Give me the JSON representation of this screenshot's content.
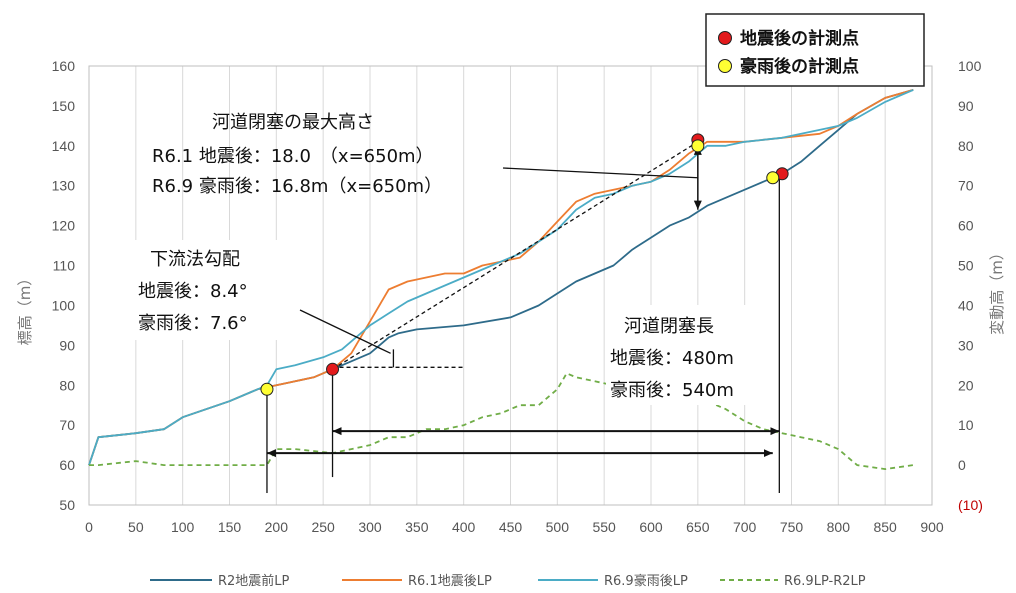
{
  "chart_data": {
    "type": "line",
    "xlim": [
      0,
      900
    ],
    "x_ticks": [
      "0",
      "50",
      "100",
      "150",
      "200",
      "250",
      "300",
      "350",
      "400",
      "450",
      "500",
      "550",
      "600",
      "650",
      "700",
      "750",
      "800",
      "850",
      "900"
    ],
    "ylim_left": [
      50,
      160
    ],
    "y_left_ticks": [
      "50",
      "60",
      "70",
      "80",
      "90",
      "100",
      "110",
      "120",
      "130",
      "140",
      "150",
      "160"
    ],
    "ylim_right": [
      -10,
      100
    ],
    "y_right_ticks": [
      "(10)",
      "0",
      "10",
      "20",
      "30",
      "40",
      "50",
      "60",
      "70",
      "80",
      "90",
      "100"
    ],
    "ylabel_left": "標高（m）",
    "ylabel_right": "変動高（m）",
    "grid": "vertical",
    "legend_position": "bottom",
    "colors": {
      "r2": "#2e6b8a",
      "r61": "#ed7d31",
      "r69": "#4bacc6",
      "diff": "#70ad47",
      "red_marker": "#e31a1c",
      "yellow_marker": "#ffff33"
    },
    "series": [
      {
        "name": "R2地震前LP",
        "axis": "left",
        "x": [
          0,
          10,
          50,
          80,
          100,
          150,
          180,
          200,
          220,
          240,
          260,
          280,
          300,
          310,
          320,
          330,
          350,
          400,
          450,
          480,
          500,
          520,
          540,
          560,
          580,
          600,
          620,
          640,
          660,
          680,
          700,
          720,
          740,
          760,
          780,
          800,
          820,
          850,
          880
        ],
        "y": [
          60,
          67,
          68,
          69,
          72,
          76,
          79,
          80,
          81,
          82,
          84,
          86,
          88,
          90,
          92,
          93,
          94,
          95,
          97,
          100,
          103,
          106,
          108,
          110,
          114,
          117,
          120,
          122,
          125,
          127,
          129,
          131,
          133,
          136,
          140,
          144,
          148,
          152,
          154
        ]
      },
      {
        "name": "R6.1地震後LP",
        "axis": "left",
        "x": [
          0,
          10,
          50,
          80,
          100,
          150,
          180,
          200,
          220,
          240,
          260,
          280,
          300,
          320,
          340,
          360,
          380,
          400,
          420,
          440,
          460,
          480,
          500,
          520,
          540,
          560,
          580,
          600,
          620,
          640,
          660,
          680,
          700,
          740,
          780,
          800,
          820,
          850,
          880
        ],
        "y": [
          60,
          67,
          68,
          69,
          72,
          76,
          79,
          80,
          81,
          82,
          84,
          88,
          96,
          104,
          106,
          107,
          108,
          108,
          110,
          111,
          112,
          116,
          121,
          126,
          128,
          129,
          130,
          131,
          134,
          138,
          141,
          141,
          141,
          142,
          143,
          145,
          148,
          152,
          154
        ]
      },
      {
        "name": "R6.9豪雨後LP",
        "axis": "left",
        "x": [
          0,
          10,
          50,
          80,
          100,
          150,
          180,
          190,
          200,
          220,
          250,
          270,
          300,
          320,
          340,
          360,
          380,
          400,
          420,
          440,
          460,
          480,
          500,
          520,
          540,
          560,
          580,
          600,
          620,
          640,
          660,
          680,
          700,
          740,
          780,
          800,
          820,
          850,
          880
        ],
        "y": [
          60,
          67,
          68,
          69,
          72,
          76,
          79,
          80,
          84,
          85,
          87,
          89,
          95,
          98,
          101,
          103,
          105,
          107,
          109,
          111,
          113,
          116,
          119,
          124,
          127,
          128,
          130,
          131,
          133,
          136,
          140,
          140,
          141,
          142,
          144,
          145,
          147,
          151,
          154
        ]
      },
      {
        "name": "R6.9LP-R2LP",
        "axis": "right",
        "x": [
          0,
          10,
          50,
          80,
          100,
          150,
          180,
          190,
          200,
          220,
          260,
          280,
          300,
          320,
          340,
          360,
          380,
          400,
          420,
          440,
          460,
          480,
          500,
          510,
          520,
          540,
          560,
          580,
          600,
          620,
          640,
          660,
          680,
          700,
          720,
          740,
          760,
          780,
          800,
          820,
          850,
          880
        ],
        "y": [
          0,
          0,
          1,
          0,
          0,
          0,
          0,
          0,
          4,
          4,
          3,
          4,
          5,
          7,
          7,
          9,
          9,
          10,
          12,
          13,
          15,
          15,
          19,
          23,
          22,
          21,
          20,
          18,
          16,
          16,
          16,
          16,
          14,
          11,
          9,
          8,
          7,
          6,
          4,
          0,
          -1,
          0
        ]
      }
    ],
    "markers": [
      {
        "x": 650,
        "y": 141.5,
        "kind": "earthquake"
      },
      {
        "x": 260,
        "y": 84,
        "kind": "earthquake"
      },
      {
        "x": 740,
        "y": 133,
        "kind": "earthquake"
      },
      {
        "x": 650,
        "y": 140,
        "kind": "rain"
      },
      {
        "x": 190,
        "y": 79,
        "kind": "rain"
      },
      {
        "x": 730,
        "y": 132,
        "kind": "rain"
      }
    ],
    "marker_legend": [
      {
        "label": "地震後の計測点",
        "kind": "earthquake"
      },
      {
        "label": "豪雨後の計測点",
        "kind": "rain"
      }
    ],
    "annotations": {
      "max_height_title": "河道閉塞の最大高さ",
      "max_height_eq": "R6.1 地震後：18.0　（x=650m）",
      "max_height_rain": "R6.9 豪雨後：16.8m（x=650m）",
      "slope_title": "下流法勾配",
      "slope_eq": "地震後：8.4°",
      "slope_rain": "豪雨後：7.6°",
      "length_title": "河道閉塞長",
      "length_eq": "地震後：480m",
      "length_rain": "豪雨後：540m"
    }
  }
}
